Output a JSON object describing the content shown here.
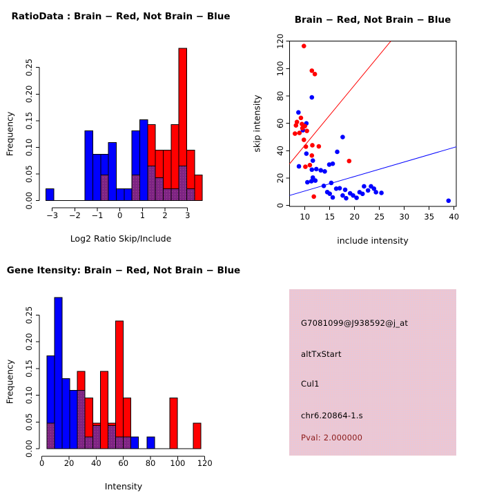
{
  "colors": {
    "blue": "#0000FF",
    "red": "#FF0000",
    "overlap_purple": "#7D2483",
    "overlap_dot": "#C457A0",
    "panel_pink": "#EFC6D0",
    "dark_red_text": "#8B1A1A",
    "axis": "#000000"
  },
  "chart_data": [
    {
      "id": "ratio_hist",
      "type": "bar",
      "title": "RatioData : Brain − Red, Not Brain − Blue",
      "xlabel": "Log2 Ratio Skip/Include",
      "ylabel": "Frequency",
      "legend": {
        "red": "Brain",
        "blue": "Not Brain",
        "purple": "overlap of red and blue bars"
      },
      "xticks": [
        -3,
        -2,
        -1,
        0,
        1,
        2,
        3
      ],
      "xtick_labels": [
        "−3",
        "−2",
        "−1",
        "0",
        "1",
        "2",
        "3"
      ],
      "yticks": [
        0,
        0.05,
        0.1,
        0.15,
        0.2,
        0.25
      ],
      "ytick_labels": [
        "0.00",
        "0.05",
        "0.10",
        "0.15",
        "0.20",
        "0.25"
      ],
      "xlim": [
        -3.6,
        3.8
      ],
      "ylim": [
        0,
        0.3
      ],
      "grid": false,
      "bins_format": "[x0, x1, freq_blue, freq_red]",
      "bins": [
        [
          -3.28,
          -2.93,
          0.022,
          0
        ],
        [
          -1.55,
          -1.2,
          0.131,
          0
        ],
        [
          -1.2,
          -0.85,
          0.087,
          0
        ],
        [
          -0.85,
          -0.51,
          0.087,
          0.048
        ],
        [
          -0.51,
          -0.16,
          0.109,
          0
        ],
        [
          -0.16,
          0.19,
          0.022,
          0
        ],
        [
          0.19,
          0.53,
          0.022,
          0
        ],
        [
          0.53,
          0.88,
          0.131,
          0.048
        ],
        [
          0.88,
          1.23,
          0.152,
          0
        ],
        [
          1.23,
          1.57,
          0.065,
          0.143
        ],
        [
          1.57,
          1.92,
          0.043,
          0.095
        ],
        [
          1.92,
          2.27,
          0.022,
          0.095
        ],
        [
          2.27,
          2.61,
          0.022,
          0.143
        ],
        [
          2.61,
          2.96,
          0.065,
          0.286
        ],
        [
          2.96,
          3.31,
          0.022,
          0.095
        ],
        [
          3.31,
          3.65,
          0,
          0.048
        ]
      ]
    },
    {
      "id": "scatter",
      "type": "scatter",
      "title": "Brain − Red, Not Brain − Blue",
      "xlabel": "include intensity",
      "ylabel": "skip intensity",
      "xticks": [
        10,
        15,
        20,
        25,
        30,
        35,
        40
      ],
      "xtick_labels": [
        "10",
        "15",
        "20",
        "25",
        "30",
        "35",
        "40"
      ],
      "yticks": [
        0,
        20,
        40,
        60,
        80,
        100,
        120
      ],
      "ytick_labels": [
        "0",
        "20",
        "40",
        "60",
        "80",
        "100",
        "120"
      ],
      "xlim": [
        6.9,
        40.5
      ],
      "ylim": [
        -0.7,
        120.02
      ],
      "grid": false,
      "red_points": [
        [
          9.8,
          116.5
        ],
        [
          11.4,
          98.5
        ],
        [
          12.0,
          96
        ],
        [
          9.2,
          64
        ],
        [
          8.4,
          61
        ],
        [
          9.4,
          59.5
        ],
        [
          8.2,
          58.5
        ],
        [
          10.0,
          58
        ],
        [
          9.5,
          56.5
        ],
        [
          10.4,
          54.5
        ],
        [
          8.9,
          53
        ],
        [
          8.0,
          52.5
        ],
        [
          9.8,
          48
        ],
        [
          11.5,
          44
        ],
        [
          12.8,
          43.2
        ],
        [
          10.2,
          43
        ],
        [
          11.4,
          36.5
        ],
        [
          18.9,
          32.5
        ],
        [
          11.0,
          29.5
        ],
        [
          10.1,
          28.3
        ],
        [
          11.8,
          6.5
        ]
      ],
      "blue_points": [
        [
          11.4,
          79
        ],
        [
          8.7,
          68
        ],
        [
          10.3,
          60
        ],
        [
          9.6,
          55
        ],
        [
          17.6,
          50
        ],
        [
          16.5,
          39.2
        ],
        [
          10.3,
          37.9
        ],
        [
          11.6,
          32.8
        ],
        [
          15.6,
          30.5
        ],
        [
          14.9,
          29.9
        ],
        [
          8.8,
          28.6
        ],
        [
          12.3,
          26.6
        ],
        [
          11.4,
          26.2
        ],
        [
          13.2,
          25.7
        ],
        [
          14.0,
          24.9
        ],
        [
          11.6,
          20.4
        ],
        [
          12.1,
          18.2
        ],
        [
          11.3,
          17.7
        ],
        [
          10.5,
          17.0
        ],
        [
          15.3,
          16.5
        ],
        [
          13.8,
          14.3
        ],
        [
          21.9,
          14.0
        ],
        [
          23.3,
          14.0
        ],
        [
          17.0,
          12.6
        ],
        [
          16.3,
          12.3
        ],
        [
          23.9,
          12.3
        ],
        [
          18.1,
          11.5
        ],
        [
          22.7,
          11.0
        ],
        [
          14.5,
          9.8
        ],
        [
          21.0,
          9.7
        ],
        [
          24.3,
          9.7
        ],
        [
          25.4,
          9.2
        ],
        [
          19.1,
          8.9
        ],
        [
          15.0,
          8.6
        ],
        [
          21.6,
          8.5
        ],
        [
          17.6,
          7.3
        ],
        [
          19.7,
          7.3
        ],
        [
          15.6,
          5.9
        ],
        [
          20.4,
          5.6
        ],
        [
          18.3,
          5.3
        ],
        [
          38.9,
          3.5
        ]
      ],
      "lines": [
        {
          "name": "brain-fit-line",
          "color": "#FF0000",
          "slope": 4.4,
          "intercept": 0
        },
        {
          "name": "not-brain-fit-line",
          "color": "#0000FF",
          "slope": 1.06,
          "intercept": 0
        }
      ]
    },
    {
      "id": "gene_hist",
      "type": "bar",
      "title": "Gene Itensity: Brain − Red, Not Brain − Blue",
      "xlabel": "Intensity",
      "ylabel": "Frequency",
      "legend": {
        "red": "Brain",
        "blue": "Not Brain",
        "purple": "overlap of red and blue bars"
      },
      "xticks": [
        0,
        20,
        40,
        60,
        80,
        100,
        120
      ],
      "xtick_labels": [
        "0",
        "20",
        "40",
        "60",
        "80",
        "100",
        "120"
      ],
      "yticks": [
        0,
        0.05,
        0.1,
        0.15,
        0.2,
        0.25
      ],
      "ytick_labels": [
        "0.00",
        "0.05",
        "0.10",
        "0.15",
        "0.20",
        "0.25"
      ],
      "xlim": [
        -1.9,
        121.8
      ],
      "ylim": [
        0,
        0.3
      ],
      "grid": false,
      "bins_format": "[x0, x1, freq_blue, freq_red]",
      "bins": [
        [
          3.8,
          9.4,
          0.174,
          0.048
        ],
        [
          9.4,
          15.0,
          0.283,
          0
        ],
        [
          15.0,
          20.6,
          0.131,
          0
        ],
        [
          20.6,
          26.2,
          0.109,
          0
        ],
        [
          26.2,
          31.8,
          0.109,
          0.145
        ],
        [
          31.8,
          37.4,
          0.022,
          0.095
        ],
        [
          37.4,
          43.0,
          0.043,
          0.048
        ],
        [
          43.0,
          48.6,
          0,
          0.145
        ],
        [
          48.6,
          54.2,
          0.043,
          0.048
        ],
        [
          54.2,
          59.8,
          0.022,
          0.239
        ],
        [
          59.8,
          65.4,
          0.022,
          0.095
        ],
        [
          65.4,
          71.0,
          0.022,
          0
        ],
        [
          77.5,
          83.1,
          0.022,
          0
        ],
        [
          94.2,
          99.8,
          0,
          0.095
        ],
        [
          111.6,
          117.2,
          0,
          0.048
        ]
      ]
    }
  ],
  "info_panel": {
    "lines": [
      {
        "text": "G7081099@J938592@j_at",
        "color": "#000000"
      },
      {
        "text": "altTxStart",
        "color": "#000000"
      },
      {
        "text": "Cul1",
        "color": "#000000"
      },
      {
        "text": "chr6.20864-1.s",
        "color": "#000000"
      },
      {
        "text": "Pval: 2.000000",
        "color": "#8B1A1A"
      }
    ]
  }
}
